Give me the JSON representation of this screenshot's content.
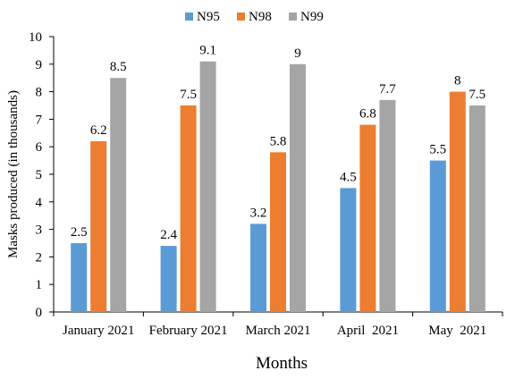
{
  "chart_data": {
    "type": "bar",
    "categories": [
      "January 2021",
      "February 2021",
      "March 2021",
      "April  2021",
      "May  2021"
    ],
    "series": [
      {
        "name": "N95",
        "color": "#5b9bd5",
        "values": [
          2.5,
          2.4,
          3.2,
          4.5,
          5.5
        ]
      },
      {
        "name": "N98",
        "color": "#ed7d31",
        "values": [
          6.2,
          7.5,
          5.8,
          6.8,
          8
        ]
      },
      {
        "name": "N99",
        "color": "#a5a5a5",
        "values": [
          8.5,
          9.1,
          9,
          7.7,
          7.5
        ]
      }
    ],
    "title": "",
    "xlabel": "Months",
    "ylabel": "Masks produced (in thousands)",
    "ylim": [
      0,
      10
    ],
    "yticks": [
      0,
      1,
      2,
      3,
      4,
      5,
      6,
      7,
      8,
      9,
      10
    ],
    "grid": false,
    "legend_position": "top-center",
    "data_labels": true
  }
}
